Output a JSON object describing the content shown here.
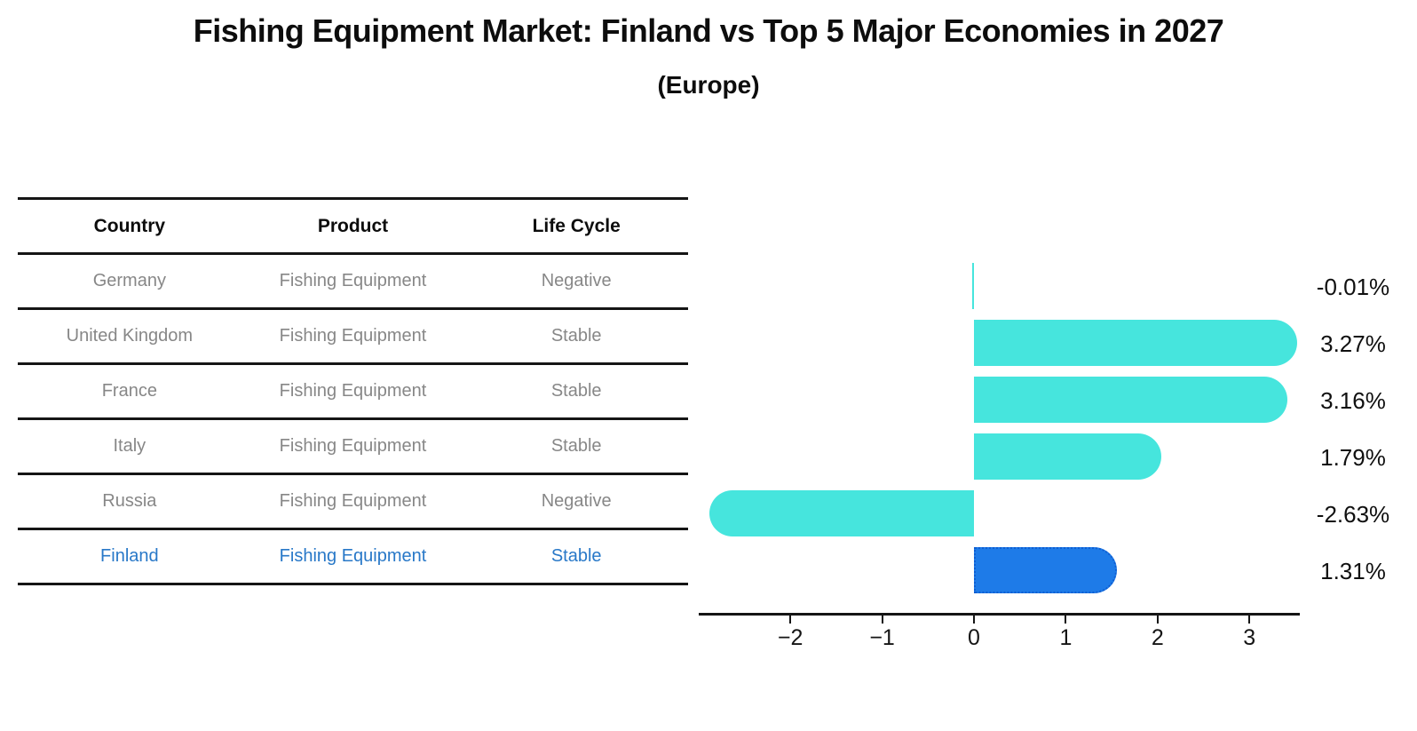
{
  "header": {
    "title": "Fishing Equipment Market: Finland vs Top 5 Major Economies in 2027",
    "subtitle": "(Europe)"
  },
  "table": {
    "headers": [
      "Country",
      "Product",
      "Life Cycle"
    ],
    "rows": [
      {
        "country": "Germany",
        "product": "Fishing Equipment",
        "life_cycle": "Negative",
        "highlight": false
      },
      {
        "country": "United Kingdom",
        "product": "Fishing Equipment",
        "life_cycle": "Stable",
        "highlight": false
      },
      {
        "country": "France",
        "product": "Fishing Equipment",
        "life_cycle": "Stable",
        "highlight": false
      },
      {
        "country": "Italy",
        "product": "Fishing Equipment",
        "life_cycle": "Stable",
        "highlight": false
      },
      {
        "country": "Russia",
        "product": "Fishing Equipment",
        "life_cycle": "Negative",
        "highlight": false
      },
      {
        "country": "Finland",
        "product": "Fishing Equipment",
        "life_cycle": "Stable",
        "highlight": true
      }
    ]
  },
  "chart_data": {
    "type": "bar",
    "orientation": "horizontal",
    "title": "Fishing Equipment Market: Finland vs Top 5 Major Economies in 2027",
    "subtitle": "(Europe)",
    "categories": [
      "Germany",
      "United Kingdom",
      "France",
      "Italy",
      "Russia",
      "Finland"
    ],
    "values": [
      -0.01,
      3.27,
      3.16,
      1.79,
      -2.63,
      1.31
    ],
    "value_labels": [
      "-0.01%",
      "3.27%",
      "3.16%",
      "1.79%",
      "-2.63%",
      "1.31%"
    ],
    "highlight_index": 5,
    "xticks": [
      -2,
      -1,
      0,
      1,
      2,
      3
    ],
    "xtick_labels": [
      "−2",
      "−1",
      "0",
      "1",
      "2",
      "3"
    ],
    "xlim": [
      -3.0,
      3.55
    ],
    "grid": false,
    "legend": false,
    "xlabel": "",
    "ylabel": "",
    "colors": {
      "bar": "#46e5dd",
      "highlight_bar": "#1e7be8",
      "highlight_border": "#0f5ed2",
      "highlight_text": "#2878c8",
      "muted_text": "#878787",
      "axis": "#151515"
    }
  }
}
